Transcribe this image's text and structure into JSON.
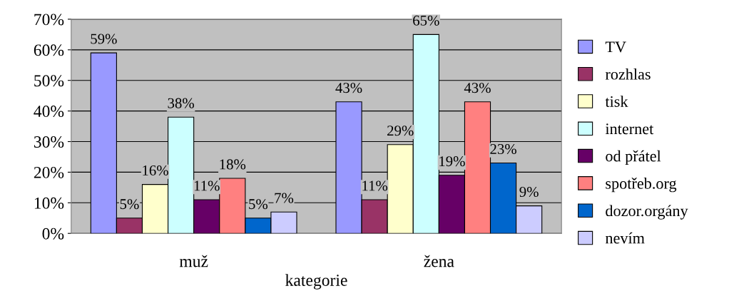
{
  "chart_data": {
    "type": "bar",
    "xlabel": "kategorie",
    "categories": [
      "muž",
      "žena"
    ],
    "ylim": [
      0,
      70
    ],
    "yticks": [
      {
        "value": 0,
        "label": "0%"
      },
      {
        "value": 10,
        "label": "10%"
      },
      {
        "value": 20,
        "label": "20%"
      },
      {
        "value": 30,
        "label": "30%"
      },
      {
        "value": 40,
        "label": "40%"
      },
      {
        "value": 50,
        "label": "50%"
      },
      {
        "value": 60,
        "label": "60%"
      },
      {
        "value": 70,
        "label": "70%"
      }
    ],
    "grid": "y",
    "legend": "right",
    "series": [
      {
        "name": "TV",
        "color": "#9999ff",
        "values": [
          59,
          43
        ],
        "value_labels": [
          "59%",
          "43%"
        ]
      },
      {
        "name": "rozhlas",
        "color": "#993366",
        "values": [
          5,
          11
        ],
        "value_labels": [
          "5%",
          "11%"
        ]
      },
      {
        "name": "tisk",
        "color": "#ffffcc",
        "values": [
          16,
          29
        ],
        "value_labels": [
          "16%",
          "29%"
        ]
      },
      {
        "name": "internet",
        "color": "#ccffff",
        "values": [
          38,
          65
        ],
        "value_labels": [
          "38%",
          "65%"
        ]
      },
      {
        "name": "od přátel",
        "color": "#660066",
        "values": [
          11,
          19
        ],
        "value_labels": [
          "11%",
          "19%"
        ]
      },
      {
        "name": "spotřeb.org",
        "color": "#ff8080",
        "values": [
          18,
          43
        ],
        "value_labels": [
          "18%",
          "43%"
        ]
      },
      {
        "name": "dozor.orgány",
        "color": "#0066cc",
        "values": [
          5,
          23
        ],
        "value_labels": [
          "5%",
          "23%"
        ]
      },
      {
        "name": "nevím",
        "color": "#ccccff",
        "values": [
          7,
          9
        ],
        "value_labels": [
          "7%",
          "9%"
        ]
      }
    ]
  }
}
